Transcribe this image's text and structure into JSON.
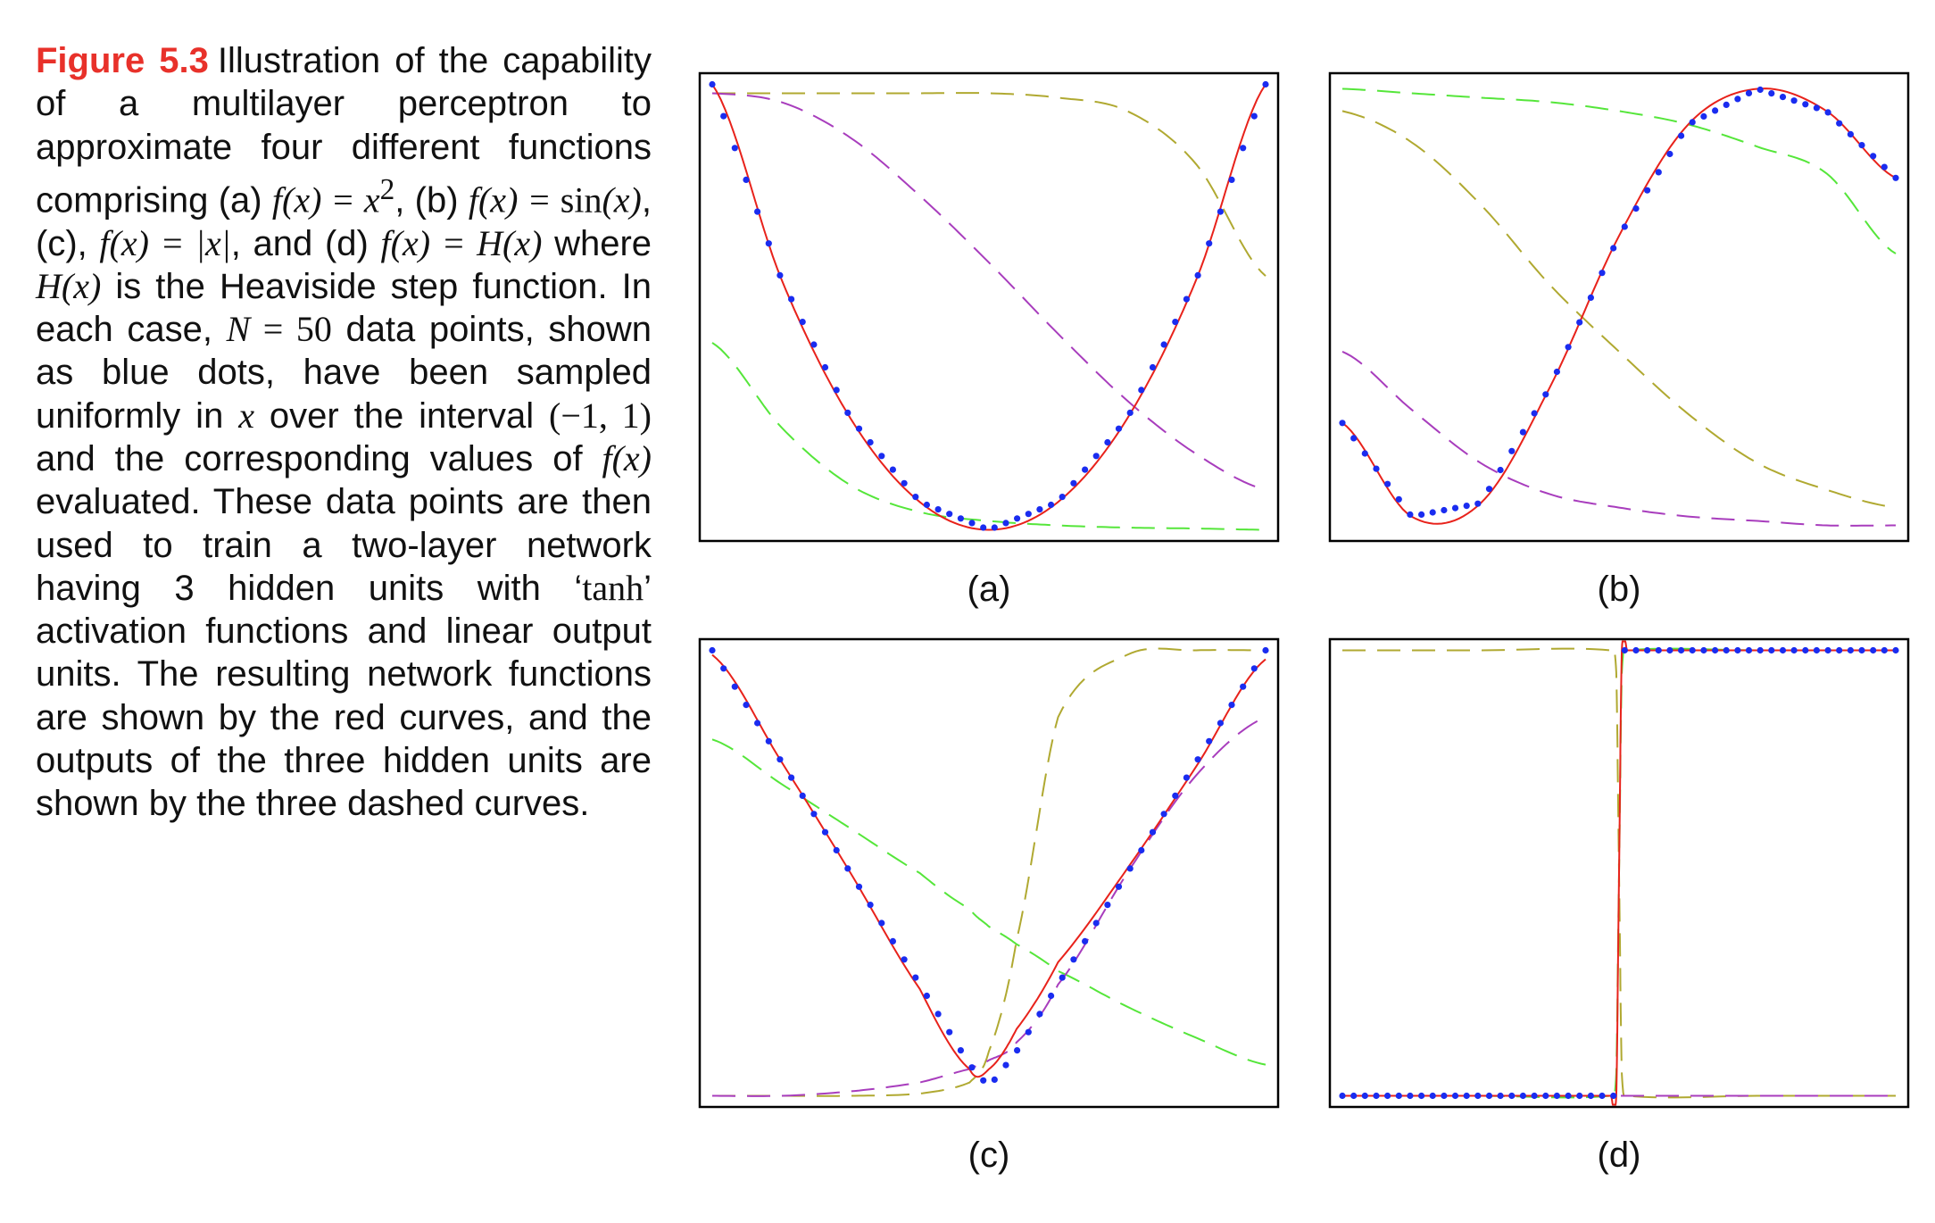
{
  "figure": {
    "label": "Figure 5.3",
    "caption": {
      "t1": "Illustration of the capability of a multilayer perceptron to approximate four different functions comprising (a) ",
      "m1": "f(x) = x",
      "sup1": "2",
      "t2": ", (b) ",
      "m2": "f(x) = ",
      "m2r": "sin",
      "m2b": "(x)",
      "t3": ", (c), ",
      "m3": "f(x) = |x|",
      "t4": ", and (d) ",
      "m4": "f(x) = H(x)",
      "t5": " where ",
      "m5": "H(x)",
      "t6": " is the Heaviside step function. In each case, ",
      "m6": "N",
      "m6r": " = 50",
      "t7": " data points, shown as blue dots, have been sampled uniformly in ",
      "m7": "x",
      "t8": " over the interval ",
      "m8": "(−1, 1)",
      "t9": " and the corresponding values of ",
      "m9": "f(x)",
      "t10": " evaluated. These data points are then used to train a two-layer network having 3 hidden units with ‘",
      "m10": "tanh",
      "t11": "’ activation functions and linear output units. The resulting network functions are shown by the red curves, and the outputs of the three hidden units are shown by the three dashed curves."
    }
  },
  "colors": {
    "caption_label": "#e8312a",
    "data_points": "#1a2cf0",
    "network_fit": "#e8221b",
    "hidden_unit_1": "#55e63a",
    "hidden_unit_2": "#b0a931",
    "hidden_unit_3": "#a83dbd",
    "frame": "#000000"
  },
  "chart_data": [
    {
      "panel": "(a)",
      "type": "line",
      "function": "x^2",
      "x": [
        -1.0,
        -0.75,
        -0.5,
        -0.25,
        0.0,
        0.25,
        0.5,
        0.75,
        1.0
      ],
      "series": [
        {
          "role": "data",
          "values": [
            1.0,
            0.5625,
            0.25,
            0.0625,
            0.0,
            0.0625,
            0.25,
            0.5625,
            1.0
          ]
        },
        {
          "role": "network",
          "values": [
            1.0,
            0.5625,
            0.25,
            0.0625,
            0.0,
            0.0625,
            0.25,
            0.5625,
            1.0
          ]
        },
        {
          "role": "hidden-1",
          "values": [
            0.42,
            0.23,
            0.1,
            0.04,
            0.02,
            0.01,
            0.005,
            0.003,
            0.0
          ]
        },
        {
          "role": "hidden-2",
          "values": [
            0.98,
            0.98,
            0.98,
            0.98,
            0.98,
            0.97,
            0.94,
            0.82,
            0.57
          ]
        },
        {
          "role": "hidden-3",
          "values": [
            0.98,
            0.96,
            0.88,
            0.75,
            0.6,
            0.44,
            0.29,
            0.17,
            0.09
          ]
        }
      ],
      "xlim": [
        -1,
        1
      ],
      "ylim": [
        -0.025,
        1.025
      ],
      "grid": false
    },
    {
      "panel": "(b)",
      "type": "line",
      "function": "sin(x)",
      "x": [
        -1.0,
        -0.75,
        -0.5,
        -0.25,
        0.0,
        0.25,
        0.5,
        0.75,
        1.0
      ],
      "series": [
        {
          "role": "data",
          "values": [
            0.24,
            0.03,
            0.06,
            0.32,
            0.66,
            0.91,
            0.99,
            0.94,
            0.79
          ]
        },
        {
          "role": "network",
          "values": [
            0.24,
            0.03,
            0.06,
            0.32,
            0.66,
            0.91,
            0.99,
            0.94,
            0.79
          ]
        },
        {
          "role": "hidden-1",
          "values": [
            0.99,
            0.98,
            0.97,
            0.96,
            0.94,
            0.91,
            0.86,
            0.8,
            0.62
          ]
        },
        {
          "role": "hidden-2",
          "values": [
            0.94,
            0.87,
            0.73,
            0.55,
            0.4,
            0.26,
            0.15,
            0.09,
            0.05
          ]
        },
        {
          "role": "hidden-3",
          "values": [
            0.4,
            0.27,
            0.15,
            0.08,
            0.05,
            0.03,
            0.02,
            0.01,
            0.01
          ]
        }
      ],
      "xlim": [
        -1,
        1
      ],
      "ylim": [
        -0.025,
        1.025
      ],
      "grid": false
    },
    {
      "panel": "(c)",
      "type": "line",
      "function": "|x|",
      "x": [
        -1.0,
        -0.75,
        -0.5,
        -0.25,
        -0.07,
        0.0,
        0.1,
        0.25,
        0.5,
        0.75,
        1.0
      ],
      "series": [
        {
          "role": "data",
          "values": [
            1.0,
            0.75,
            0.5,
            0.25,
            0.07,
            0.02,
            0.1,
            0.25,
            0.5,
            0.75,
            1.0
          ]
        },
        {
          "role": "network",
          "values": [
            0.99,
            0.75,
            0.5,
            0.24,
            0.06,
            0.06,
            0.15,
            0.3,
            0.51,
            0.74,
            0.98
          ]
        },
        {
          "role": "hidden-1",
          "values": [
            0.8,
            0.7,
            0.6,
            0.5,
            0.42,
            0.38,
            0.34,
            0.28,
            0.2,
            0.13,
            0.07
          ]
        },
        {
          "role": "hidden-2",
          "values": [
            0.0,
            0.0,
            0.0,
            0.005,
            0.03,
            0.1,
            0.35,
            0.85,
            0.99,
            1.0,
            1.0
          ]
        },
        {
          "role": "hidden-3",
          "values": [
            0.0,
            0.0,
            0.01,
            0.03,
            0.06,
            0.08,
            0.12,
            0.25,
            0.5,
            0.72,
            0.85
          ]
        }
      ],
      "xlim": [
        -1,
        1
      ],
      "ylim": [
        -0.025,
        1.025
      ],
      "grid": false
    },
    {
      "panel": "(d)",
      "type": "line",
      "function": "H(x)",
      "x": [
        -1.0,
        -0.5,
        -0.03,
        -0.01,
        0.0,
        0.01,
        0.03,
        0.5,
        1.0
      ],
      "series": [
        {
          "role": "data",
          "values": [
            0.0,
            0.0,
            0.0,
            0.0,
            1.0,
            1.0,
            1.0,
            1.0,
            1.0
          ]
        },
        {
          "role": "network",
          "values": [
            0.0,
            0.0,
            0.0,
            0.0,
            0.5,
            1.0,
            1.0,
            1.0,
            1.0
          ]
        },
        {
          "role": "hidden-1",
          "values": [
            0.0,
            0.0,
            0.0,
            0.05,
            0.5,
            0.95,
            1.0,
            1.0,
            1.0
          ]
        },
        {
          "role": "hidden-2",
          "values": [
            1.0,
            1.0,
            1.0,
            0.95,
            0.5,
            0.05,
            0.0,
            0.0,
            0.0
          ]
        },
        {
          "role": "hidden-3",
          "values": [
            0.0,
            0.0,
            0.0,
            0.0,
            0.0,
            0.0,
            0.0,
            0.0,
            0.0
          ]
        }
      ],
      "xlim": [
        -1,
        1
      ],
      "ylim": [
        -0.025,
        1.025
      ],
      "grid": false
    }
  ]
}
